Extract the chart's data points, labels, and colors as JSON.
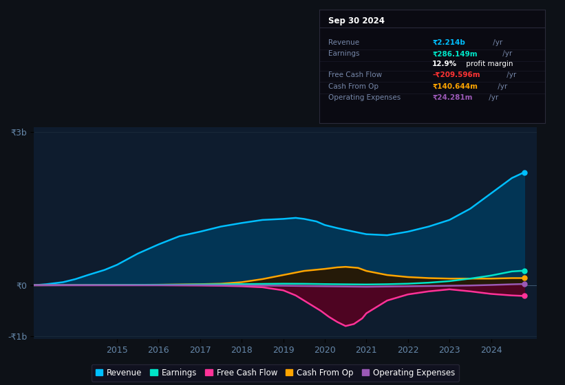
{
  "background_color": "#0d1117",
  "plot_bg_color": "#0e1c2e",
  "legend_items": [
    {
      "label": "Revenue",
      "color": "#00bfff",
      "marker": "o"
    },
    {
      "label": "Earnings",
      "color": "#00e5c8",
      "marker": "o"
    },
    {
      "label": "Free Cash Flow",
      "color": "#ff3399",
      "marker": "o"
    },
    {
      "label": "Cash From Op",
      "color": "#ffa500",
      "marker": "o"
    },
    {
      "label": "Operating Expenses",
      "color": "#9b59b6",
      "marker": "o"
    }
  ],
  "info_box": {
    "title": "Sep 30 2024",
    "rows": [
      {
        "label": "Revenue",
        "value": "₹2.214b",
        "suffix": " /yr",
        "value_color": "#00bfff"
      },
      {
        "label": "Earnings",
        "value": "₹286.149m",
        "suffix": " /yr",
        "value_color": "#00e5c8"
      },
      {
        "label": "",
        "value": "12.9%",
        "suffix": " profit margin",
        "value_color": "#ffffff"
      },
      {
        "label": "Free Cash Flow",
        "value": "-₹209.596m",
        "suffix": " /yr",
        "value_color": "#ff3333"
      },
      {
        "label": "Cash From Op",
        "value": "₹140.644m",
        "suffix": " /yr",
        "value_color": "#ffa500"
      },
      {
        "label": "Operating Expenses",
        "value": "₹24.281m",
        "suffix": " /yr",
        "value_color": "#9b59b6"
      }
    ]
  },
  "revenue_x": [
    2013.0,
    2013.3,
    2013.7,
    2014.0,
    2014.3,
    2014.7,
    2015.0,
    2015.5,
    2016.0,
    2016.5,
    2017.0,
    2017.5,
    2018.0,
    2018.5,
    2019.0,
    2019.3,
    2019.5,
    2019.8,
    2020.0,
    2020.3,
    2020.7,
    2021.0,
    2021.5,
    2022.0,
    2022.5,
    2023.0,
    2023.5,
    2024.0,
    2024.5,
    2024.8
  ],
  "revenue_y": [
    0.0,
    0.02,
    0.06,
    0.12,
    0.2,
    0.3,
    0.4,
    0.62,
    0.8,
    0.96,
    1.05,
    1.15,
    1.22,
    1.28,
    1.3,
    1.32,
    1.3,
    1.25,
    1.18,
    1.12,
    1.05,
    1.0,
    0.98,
    1.05,
    1.15,
    1.28,
    1.5,
    1.8,
    2.1,
    2.214
  ],
  "earnings_x": [
    2013.0,
    2014.0,
    2015.0,
    2016.0,
    2016.5,
    2017.0,
    2017.5,
    2018.0,
    2018.5,
    2019.0,
    2019.5,
    2020.0,
    2020.5,
    2021.0,
    2021.5,
    2022.0,
    2022.5,
    2023.0,
    2023.5,
    2024.0,
    2024.5,
    2024.8
  ],
  "earnings_y": [
    0.0,
    0.002,
    0.005,
    0.008,
    0.01,
    0.015,
    0.018,
    0.022,
    0.026,
    0.03,
    0.028,
    0.022,
    0.018,
    0.015,
    0.02,
    0.03,
    0.05,
    0.08,
    0.13,
    0.19,
    0.27,
    0.286
  ],
  "fcf_x": [
    2013.0,
    2014.0,
    2015.0,
    2016.0,
    2017.0,
    2017.5,
    2018.0,
    2018.5,
    2019.0,
    2019.3,
    2019.6,
    2019.9,
    2020.1,
    2020.3,
    2020.5,
    2020.7,
    2020.9,
    2021.0,
    2021.2,
    2021.5,
    2022.0,
    2022.5,
    2023.0,
    2023.5,
    2024.0,
    2024.5,
    2024.8
  ],
  "fcf_y": [
    0.0,
    0.0,
    0.0,
    0.0,
    -0.005,
    -0.01,
    -0.02,
    -0.04,
    -0.1,
    -0.2,
    -0.35,
    -0.5,
    -0.62,
    -0.72,
    -0.8,
    -0.76,
    -0.65,
    -0.55,
    -0.45,
    -0.3,
    -0.18,
    -0.12,
    -0.08,
    -0.12,
    -0.17,
    -0.2,
    -0.21
  ],
  "cop_x": [
    2013.0,
    2014.0,
    2015.0,
    2016.0,
    2017.0,
    2017.5,
    2018.0,
    2018.5,
    2019.0,
    2019.5,
    2020.0,
    2020.3,
    2020.5,
    2020.8,
    2021.0,
    2021.5,
    2022.0,
    2022.5,
    2023.0,
    2023.5,
    2024.0,
    2024.5,
    2024.8
  ],
  "cop_y": [
    0.0,
    0.002,
    0.005,
    0.01,
    0.02,
    0.03,
    0.06,
    0.12,
    0.2,
    0.28,
    0.32,
    0.35,
    0.36,
    0.34,
    0.28,
    0.2,
    0.16,
    0.14,
    0.13,
    0.13,
    0.13,
    0.14,
    0.14
  ],
  "opex_x": [
    2013.0,
    2014.0,
    2015.0,
    2016.0,
    2017.0,
    2018.0,
    2019.0,
    2019.5,
    2020.0,
    2020.5,
    2021.0,
    2021.5,
    2022.0,
    2022.5,
    2023.0,
    2023.5,
    2024.0,
    2024.5,
    2024.8
  ],
  "opex_y": [
    0.0,
    0.0,
    0.0,
    0.0,
    0.0,
    -0.005,
    -0.01,
    -0.015,
    -0.02,
    -0.025,
    -0.03,
    -0.025,
    -0.02,
    -0.015,
    -0.01,
    -0.005,
    0.005,
    0.018,
    0.024
  ],
  "revenue_color": "#00bfff",
  "revenue_fill": "#003a5c",
  "earnings_color": "#00e5c8",
  "fcf_color": "#ff3399",
  "fcf_fill": "#5a0020",
  "cop_color": "#ffa500",
  "cop_fill": "#2a1800",
  "opex_color": "#9b59b6",
  "ylim": [
    -1.05,
    3.1
  ],
  "xlim": [
    2013.0,
    2025.1
  ],
  "yticks": [
    -1.0,
    0.0,
    3.0
  ],
  "ytick_labels": [
    "-₹1b",
    "₹0",
    "₹3b"
  ],
  "xticks": [
    2015,
    2016,
    2017,
    2018,
    2019,
    2020,
    2021,
    2022,
    2023,
    2024
  ],
  "xtick_labels": [
    "2015",
    "2016",
    "2017",
    "2018",
    "2019",
    "2020",
    "2021",
    "2022",
    "2023",
    "2024"
  ],
  "grid_color": "#1a2a3a",
  "axis_color": "#6688aa",
  "label_color": "#6688aa"
}
